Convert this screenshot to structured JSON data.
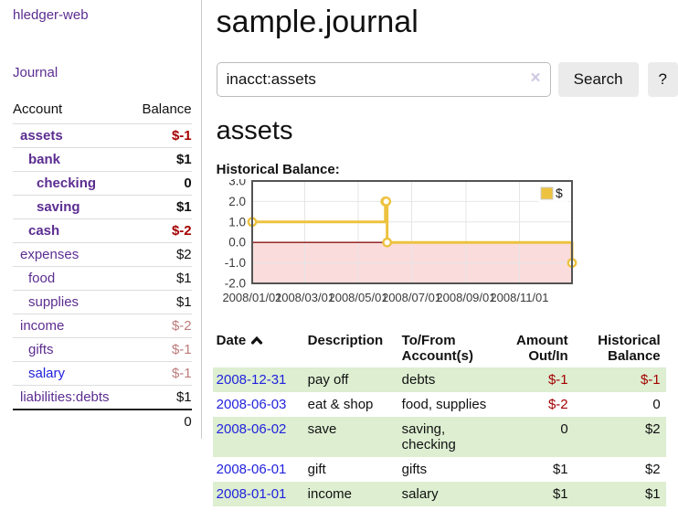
{
  "colors": {
    "link_purple": "#5c2d91",
    "link_blue": "#2222dd",
    "neg_strong": "#a40000",
    "neg_soft": "#bd7b7b",
    "row_green": "#ddeed1"
  },
  "sidebar": {
    "app_title": "hledger-web",
    "nav": [
      {
        "label": "Journal"
      }
    ],
    "accounts_table": {
      "headers": {
        "account": "Account",
        "balance": "Balance"
      },
      "rows": [
        {
          "account": "assets",
          "balance": "$-1",
          "depth": 1,
          "bold": true,
          "balance_style": "neg_strong",
          "link": "purple"
        },
        {
          "account": "bank",
          "balance": "$1",
          "depth": 2,
          "bold": true,
          "balance_style": "pos",
          "link": "purple"
        },
        {
          "account": "checking",
          "balance": "0",
          "depth": 3,
          "bold": true,
          "balance_style": "pos",
          "link": "purple"
        },
        {
          "account": "saving",
          "balance": "$1",
          "depth": 3,
          "bold": true,
          "balance_style": "pos",
          "link": "purple"
        },
        {
          "account": "cash",
          "balance": "$-2",
          "depth": 2,
          "bold": true,
          "balance_style": "neg_strong",
          "link": "purple"
        },
        {
          "account": "expenses",
          "balance": "$2",
          "depth": 1,
          "bold": false,
          "balance_style": "pos",
          "link": "purple"
        },
        {
          "account": "food",
          "balance": "$1",
          "depth": 2,
          "bold": false,
          "balance_style": "pos",
          "link": "purple"
        },
        {
          "account": "supplies",
          "balance": "$1",
          "depth": 2,
          "bold": false,
          "balance_style": "pos",
          "link": "purple"
        },
        {
          "account": "income",
          "balance": "$-2",
          "depth": 1,
          "bold": false,
          "balance_style": "neg_soft",
          "link": "purple"
        },
        {
          "account": "gifts",
          "balance": "$-1",
          "depth": 2,
          "bold": false,
          "balance_style": "neg_soft",
          "link": "purple"
        },
        {
          "account": "salary",
          "balance": "$-1",
          "depth": 2,
          "bold": false,
          "balance_style": "neg_soft",
          "link": "blue"
        },
        {
          "account": "liabilities:debts",
          "balance": "$1",
          "depth": 1,
          "bold": false,
          "balance_style": "pos",
          "link": "purple"
        }
      ],
      "total": "0"
    }
  },
  "main": {
    "page_title": "sample.journal",
    "search": {
      "value": "inacct:assets",
      "clear_icon": "×",
      "search_button": "Search",
      "help_button": "?"
    },
    "account_heading": "assets",
    "chart_label": "Historical Balance:",
    "register": {
      "headers": {
        "date": "Date",
        "sort_icon": "chevron-up",
        "description": "Description",
        "accounts": "To/From Account(s)",
        "amount": "Amount Out/In",
        "balance": "Historical Balance"
      },
      "rows": [
        {
          "date": "2008-12-31",
          "description": "pay off",
          "accounts": "debts",
          "amount": "$-1",
          "amount_style": "neg",
          "balance": "$-1",
          "balance_style": "neg",
          "shaded": true
        },
        {
          "date": "2008-06-03",
          "description": "eat & shop",
          "accounts": "food, supplies",
          "amount": "$-2",
          "amount_style": "neg",
          "balance": "0",
          "balance_style": "pos",
          "shaded": false
        },
        {
          "date": "2008-06-02",
          "description": "save",
          "accounts": "saving, checking",
          "amount": "0",
          "amount_style": "pos",
          "balance": "$2",
          "balance_style": "pos",
          "shaded": true
        },
        {
          "date": "2008-06-01",
          "description": "gift",
          "accounts": "gifts",
          "amount": "$1",
          "amount_style": "pos",
          "balance": "$2",
          "balance_style": "pos",
          "shaded": false
        },
        {
          "date": "2008-01-01",
          "description": "income",
          "accounts": "salary",
          "amount": "$1",
          "amount_style": "pos",
          "balance": "$1",
          "balance_style": "pos",
          "shaded": true
        }
      ]
    }
  },
  "chart_data": {
    "type": "line",
    "title": "Historical Balance:",
    "step": true,
    "series": [
      {
        "name": "$",
        "color": "#edc240",
        "points": [
          [
            "2008-01-01",
            1
          ],
          [
            "2008-06-01",
            2
          ],
          [
            "2008-06-02",
            2
          ],
          [
            "2008-06-03",
            0
          ],
          [
            "2008-12-31",
            -1
          ]
        ]
      }
    ],
    "ylim": [
      -2,
      3
    ],
    "yticks": [
      3.0,
      2.0,
      1.0,
      0.0,
      -1.0,
      -2.0
    ],
    "xticks": [
      "2008/01/01",
      "2008/03/01",
      "2008/05/01",
      "2008/07/01",
      "2008/09/01",
      "2008/11/01"
    ],
    "xrange": [
      "2008-01-01",
      "2008-12-31"
    ],
    "legend": "$",
    "legend_position": "top-right",
    "grid": true,
    "negative_fill": "#fbdcdc",
    "zero_line_color": "#8b1414",
    "border_color": "#545454",
    "grid_color": "#e6e6e6",
    "tick_label_color": "#3a3a3a"
  }
}
